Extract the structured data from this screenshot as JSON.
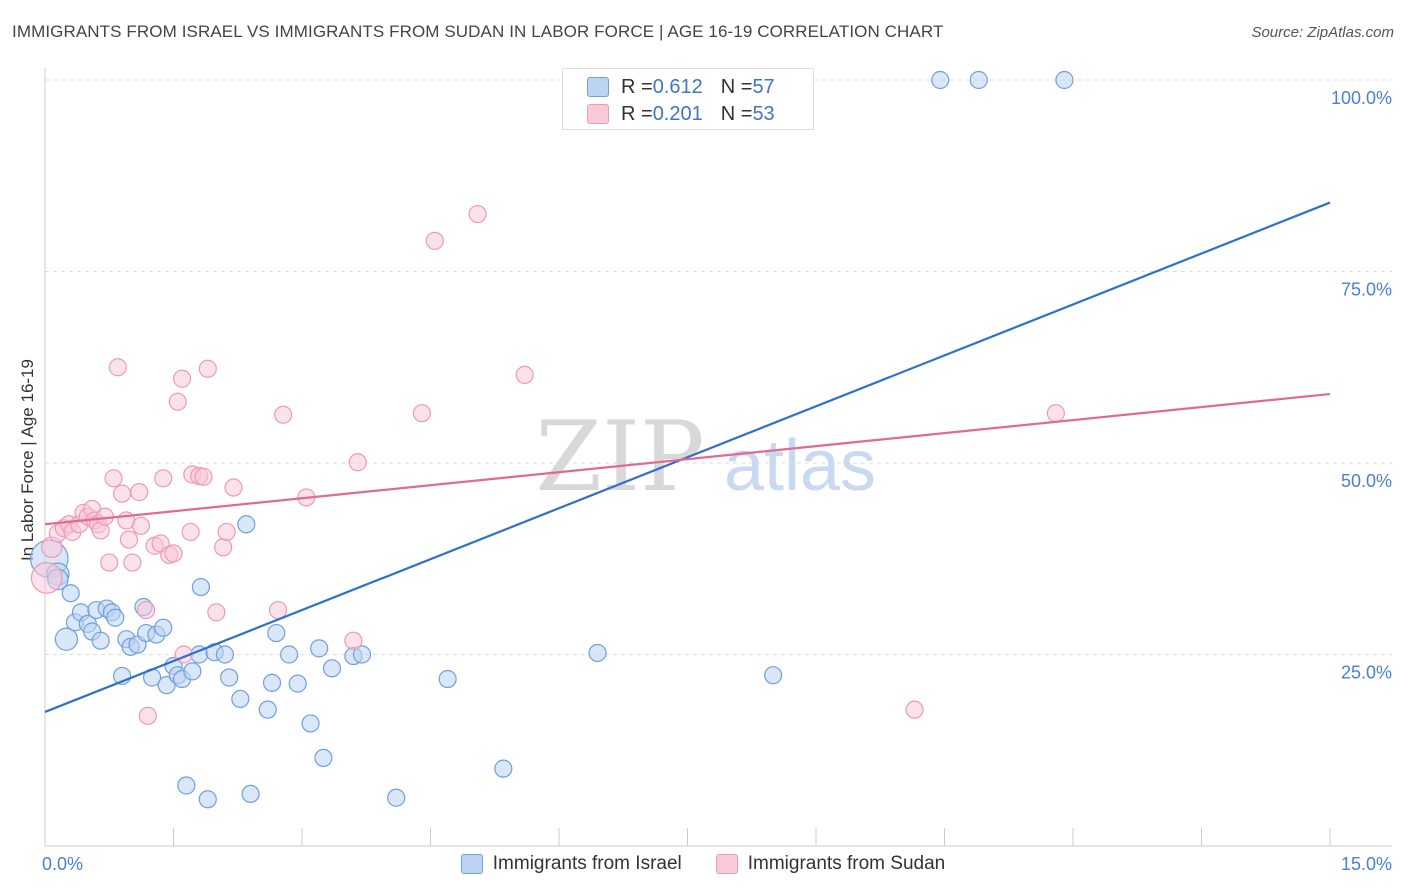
{
  "title": "IMMIGRANTS FROM ISRAEL VS IMMIGRANTS FROM SUDAN IN LABOR FORCE | AGE 16-19 CORRELATION CHART",
  "source": "Source: ZipAtlas.com",
  "watermark": {
    "zip": "ZIP",
    "atlas": "atlas"
  },
  "legend_top": {
    "israel": {
      "r_label": "R = ",
      "r_value": "0.612",
      "n_label": "N = ",
      "n_value": "57"
    },
    "sudan": {
      "r_label": "R = ",
      "r_value": "0.201",
      "n_label": "N = ",
      "n_value": "53"
    }
  },
  "chart_data": {
    "type": "scatter",
    "title": "IMMIGRANTS FROM ISRAEL VS IMMIGRANTS FROM SUDAN IN LABOR FORCE | AGE 16-19 CORRELATION CHART",
    "xlabel": "",
    "ylabel": "In Labor Force | Age 16-19",
    "xlim": [
      0,
      15
    ],
    "ylim": [
      0,
      100
    ],
    "x_tick_labels": [
      "0.0%",
      "15.0%"
    ],
    "y_ticks": [
      25,
      50,
      75,
      100
    ],
    "y_tick_labels": [
      "25.0%",
      "50.0%",
      "75.0%",
      "100.0%"
    ],
    "grid": true,
    "legend_position": "top-center",
    "series": [
      {
        "name": "Immigrants from Israel",
        "color": "#6f9fe0",
        "fill": "#bcd3f3",
        "trend": {
          "x": [
            0,
            15
          ],
          "y": [
            17.5,
            84
          ]
        },
        "trend_color": "#2f6fce",
        "points": [
          {
            "x": 0.05,
            "y": 37.5,
            "r": 2.2
          },
          {
            "x": 0.15,
            "y": 35.5,
            "r": 1.3
          },
          {
            "x": 0.15,
            "y": 34.8,
            "r": 1.2
          },
          {
            "x": 0.3,
            "y": 33.0
          },
          {
            "x": 0.25,
            "y": 27.0,
            "r": 1.3
          },
          {
            "x": 0.35,
            "y": 29.2
          },
          {
            "x": 0.42,
            "y": 30.5
          },
          {
            "x": 0.5,
            "y": 29.0
          },
          {
            "x": 0.55,
            "y": 28.0
          },
          {
            "x": 0.6,
            "y": 30.8
          },
          {
            "x": 0.65,
            "y": 26.8
          },
          {
            "x": 0.72,
            "y": 31.0
          },
          {
            "x": 0.78,
            "y": 30.5
          },
          {
            "x": 0.82,
            "y": 29.8
          },
          {
            "x": 0.9,
            "y": 22.2
          },
          {
            "x": 0.95,
            "y": 27.0
          },
          {
            "x": 1.0,
            "y": 26.0
          },
          {
            "x": 1.08,
            "y": 26.3
          },
          {
            "x": 1.15,
            "y": 31.2
          },
          {
            "x": 1.18,
            "y": 27.8
          },
          {
            "x": 1.25,
            "y": 22.0
          },
          {
            "x": 1.3,
            "y": 27.6
          },
          {
            "x": 1.38,
            "y": 28.5
          },
          {
            "x": 1.42,
            "y": 21.0
          },
          {
            "x": 1.5,
            "y": 23.5
          },
          {
            "x": 1.55,
            "y": 22.3
          },
          {
            "x": 1.6,
            "y": 21.8
          },
          {
            "x": 1.65,
            "y": 7.9
          },
          {
            "x": 1.72,
            "y": 22.8
          },
          {
            "x": 1.8,
            "y": 25.0
          },
          {
            "x": 1.82,
            "y": 33.8
          },
          {
            "x": 1.9,
            "y": 6.1
          },
          {
            "x": 1.98,
            "y": 25.3
          },
          {
            "x": 2.1,
            "y": 25.0
          },
          {
            "x": 2.15,
            "y": 22.0
          },
          {
            "x": 2.28,
            "y": 19.2
          },
          {
            "x": 2.35,
            "y": 42.0
          },
          {
            "x": 2.4,
            "y": 6.8
          },
          {
            "x": 2.6,
            "y": 17.8
          },
          {
            "x": 2.65,
            "y": 21.3
          },
          {
            "x": 2.7,
            "y": 27.8
          },
          {
            "x": 2.85,
            "y": 25.0
          },
          {
            "x": 2.95,
            "y": 21.2
          },
          {
            "x": 3.1,
            "y": 16.0
          },
          {
            "x": 3.2,
            "y": 25.8
          },
          {
            "x": 3.25,
            "y": 11.5
          },
          {
            "x": 3.35,
            "y": 23.2
          },
          {
            "x": 3.6,
            "y": 24.8
          },
          {
            "x": 3.7,
            "y": 25.0
          },
          {
            "x": 4.1,
            "y": 6.3
          },
          {
            "x": 4.7,
            "y": 21.8
          },
          {
            "x": 5.35,
            "y": 10.1
          },
          {
            "x": 6.45,
            "y": 25.2
          },
          {
            "x": 8.5,
            "y": 22.3
          },
          {
            "x": 10.45,
            "y": 100.0
          },
          {
            "x": 10.9,
            "y": 100.0
          },
          {
            "x": 11.9,
            "y": 100.0
          }
        ]
      },
      {
        "name": "Immigrants from Sudan",
        "color": "#ec9bb4",
        "fill": "#f8c9d7",
        "trend": {
          "x": [
            0,
            15
          ],
          "y": [
            42.0,
            59.0
          ]
        },
        "trend_color": "#e06a94",
        "points": [
          {
            "x": 0.02,
            "y": 35.0,
            "r": 1.8
          },
          {
            "x": 0.08,
            "y": 39.0,
            "r": 1.2
          },
          {
            "x": 0.15,
            "y": 40.8
          },
          {
            "x": 0.22,
            "y": 41.5
          },
          {
            "x": 0.28,
            "y": 42.0
          },
          {
            "x": 0.32,
            "y": 41.0
          },
          {
            "x": 0.4,
            "y": 42.0
          },
          {
            "x": 0.45,
            "y": 43.5
          },
          {
            "x": 0.5,
            "y": 43.0
          },
          {
            "x": 0.55,
            "y": 44.0
          },
          {
            "x": 0.58,
            "y": 42.5
          },
          {
            "x": 0.62,
            "y": 42.0
          },
          {
            "x": 0.65,
            "y": 41.2
          },
          {
            "x": 0.7,
            "y": 43.0
          },
          {
            "x": 0.75,
            "y": 37.0
          },
          {
            "x": 0.8,
            "y": 48.0
          },
          {
            "x": 0.85,
            "y": 62.5
          },
          {
            "x": 0.9,
            "y": 46.0
          },
          {
            "x": 0.95,
            "y": 42.5
          },
          {
            "x": 0.98,
            "y": 40.0
          },
          {
            "x": 1.02,
            "y": 37.0
          },
          {
            "x": 1.1,
            "y": 46.2
          },
          {
            "x": 1.12,
            "y": 41.8
          },
          {
            "x": 1.18,
            "y": 30.8
          },
          {
            "x": 1.2,
            "y": 17.0
          },
          {
            "x": 1.28,
            "y": 39.2
          },
          {
            "x": 1.35,
            "y": 39.5
          },
          {
            "x": 1.38,
            "y": 48.0
          },
          {
            "x": 1.45,
            "y": 38.0
          },
          {
            "x": 1.5,
            "y": 38.2
          },
          {
            "x": 1.55,
            "y": 58.0
          },
          {
            "x": 1.6,
            "y": 61.0
          },
          {
            "x": 1.62,
            "y": 25.0
          },
          {
            "x": 1.7,
            "y": 41.0
          },
          {
            "x": 1.72,
            "y": 48.5
          },
          {
            "x": 1.8,
            "y": 48.3
          },
          {
            "x": 1.85,
            "y": 48.2
          },
          {
            "x": 1.9,
            "y": 62.3
          },
          {
            "x": 2.0,
            "y": 30.5
          },
          {
            "x": 2.08,
            "y": 39.0
          },
          {
            "x": 2.12,
            "y": 41.0
          },
          {
            "x": 2.2,
            "y": 46.8
          },
          {
            "x": 2.72,
            "y": 30.8
          },
          {
            "x": 2.78,
            "y": 56.3
          },
          {
            "x": 3.05,
            "y": 45.5
          },
          {
            "x": 3.6,
            "y": 26.8
          },
          {
            "x": 3.65,
            "y": 50.1
          },
          {
            "x": 4.4,
            "y": 56.5
          },
          {
            "x": 4.55,
            "y": 79.0
          },
          {
            "x": 5.05,
            "y": 82.5
          },
          {
            "x": 5.6,
            "y": 61.5
          },
          {
            "x": 10.15,
            "y": 17.8
          },
          {
            "x": 11.8,
            "y": 56.5
          }
        ]
      }
    ]
  }
}
